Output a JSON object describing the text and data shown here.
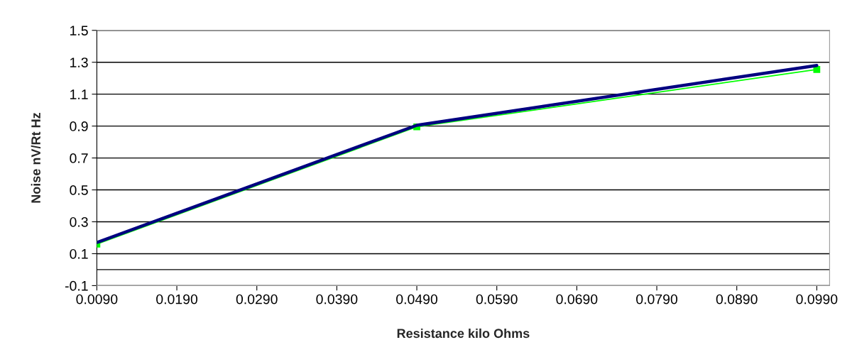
{
  "chart_data": {
    "type": "line",
    "xlabel": "Resistance kilo Ohms",
    "ylabel": "Noise nV/Rt Hz",
    "x": [
      0.009,
      0.049,
      0.099
    ],
    "series": [
      {
        "color": "#000080",
        "values": [
          0.17,
          0.905,
          1.28
        ],
        "marker": "none"
      },
      {
        "color": "#00ff00",
        "values": [
          0.16,
          0.895,
          1.255
        ],
        "marker": "square"
      }
    ],
    "xlim": [
      0.009,
      0.1006
    ],
    "xticks": [
      {
        "value": 0.009,
        "label": "0.0090"
      },
      {
        "value": 0.019,
        "label": "0.0190"
      },
      {
        "value": 0.029,
        "label": "0.0290"
      },
      {
        "value": 0.039,
        "label": "0.0390"
      },
      {
        "value": 0.049,
        "label": "0.0490"
      },
      {
        "value": 0.059,
        "label": "0.0590"
      },
      {
        "value": 0.069,
        "label": "0.0690"
      },
      {
        "value": 0.079,
        "label": "0.0790"
      },
      {
        "value": 0.089,
        "label": "0.0890"
      },
      {
        "value": 0.099,
        "label": "0.0990"
      }
    ],
    "ylim": [
      -0.1,
      1.5
    ],
    "yticks": [
      -0.1,
      0.1,
      0.3,
      0.5,
      0.7,
      0.9,
      1.1,
      1.3,
      1.5
    ],
    "ref_lines": [
      {
        "axis": "y",
        "value": 0,
        "color": "#000000"
      }
    ],
    "grid": "y"
  }
}
